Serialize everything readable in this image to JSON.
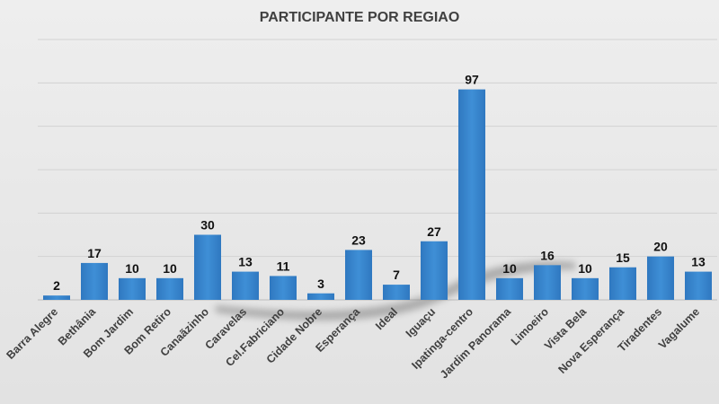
{
  "chart_data": {
    "type": "bar",
    "title": "PARTICIPANTE POR REGIAO",
    "xlabel": "",
    "ylabel": "",
    "ylim": [
      0,
      120
    ],
    "grid": true,
    "legend": "none",
    "bar_color": "#3f8fd6",
    "bar_color_dark": "#2f78c0",
    "categories": [
      "Barra Alegre",
      "Bethânia",
      "Bom Jardim",
      "Bom Retiro",
      "Canaãzinho",
      "Caravelas",
      "Cel.Fabriciano",
      "Cidade Nobre",
      "Esperança",
      "Ideal",
      "Iguaçu",
      "Ipatinga-centro",
      "Jardim Panorama",
      "Limoeiro",
      "Vista Bela",
      "Nova Esperança",
      "Tiradentes",
      "Vagalume"
    ],
    "values": [
      2,
      17,
      10,
      10,
      30,
      13,
      11,
      3,
      23,
      7,
      27,
      97,
      10,
      16,
      10,
      15,
      20,
      13
    ],
    "data_labels": [
      "2",
      "17",
      "10",
      "10",
      "30",
      "13",
      "11",
      "3",
      "23",
      "7",
      "27",
      "97",
      "10",
      "16",
      "10",
      "15",
      "20",
      "13"
    ]
  }
}
